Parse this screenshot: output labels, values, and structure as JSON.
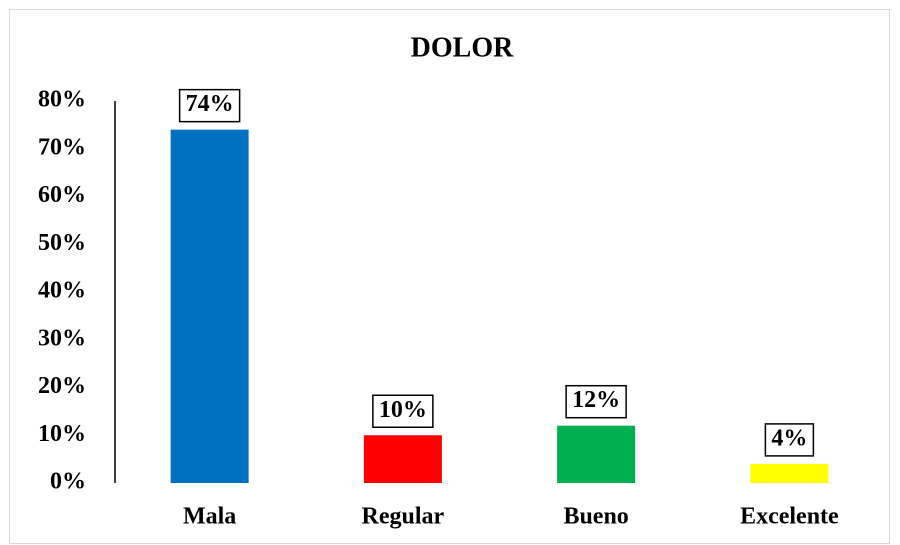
{
  "chart_data": {
    "type": "bar",
    "title": "DOLOR",
    "categories": [
      "Mala",
      "Regular",
      "Bueno",
      "Excelente"
    ],
    "values": [
      74,
      10,
      12,
      4
    ],
    "value_labels": [
      "74%",
      "10%",
      "12%",
      "4%"
    ],
    "colors": [
      "#0070c0",
      "#ff0000",
      "#00b050",
      "#ffff00"
    ],
    "ylim": [
      0,
      80
    ],
    "yticks": [
      {
        "value": 0,
        "label": "0%"
      },
      {
        "value": 10,
        "label": "10%"
      },
      {
        "value": 20,
        "label": "20%"
      },
      {
        "value": 30,
        "label": "30%"
      },
      {
        "value": 40,
        "label": "40%"
      },
      {
        "value": 50,
        "label": "50%"
      },
      {
        "value": 60,
        "label": "60%"
      },
      {
        "value": 70,
        "label": "70%"
      },
      {
        "value": 80,
        "label": "80%"
      }
    ],
    "grid": false
  }
}
